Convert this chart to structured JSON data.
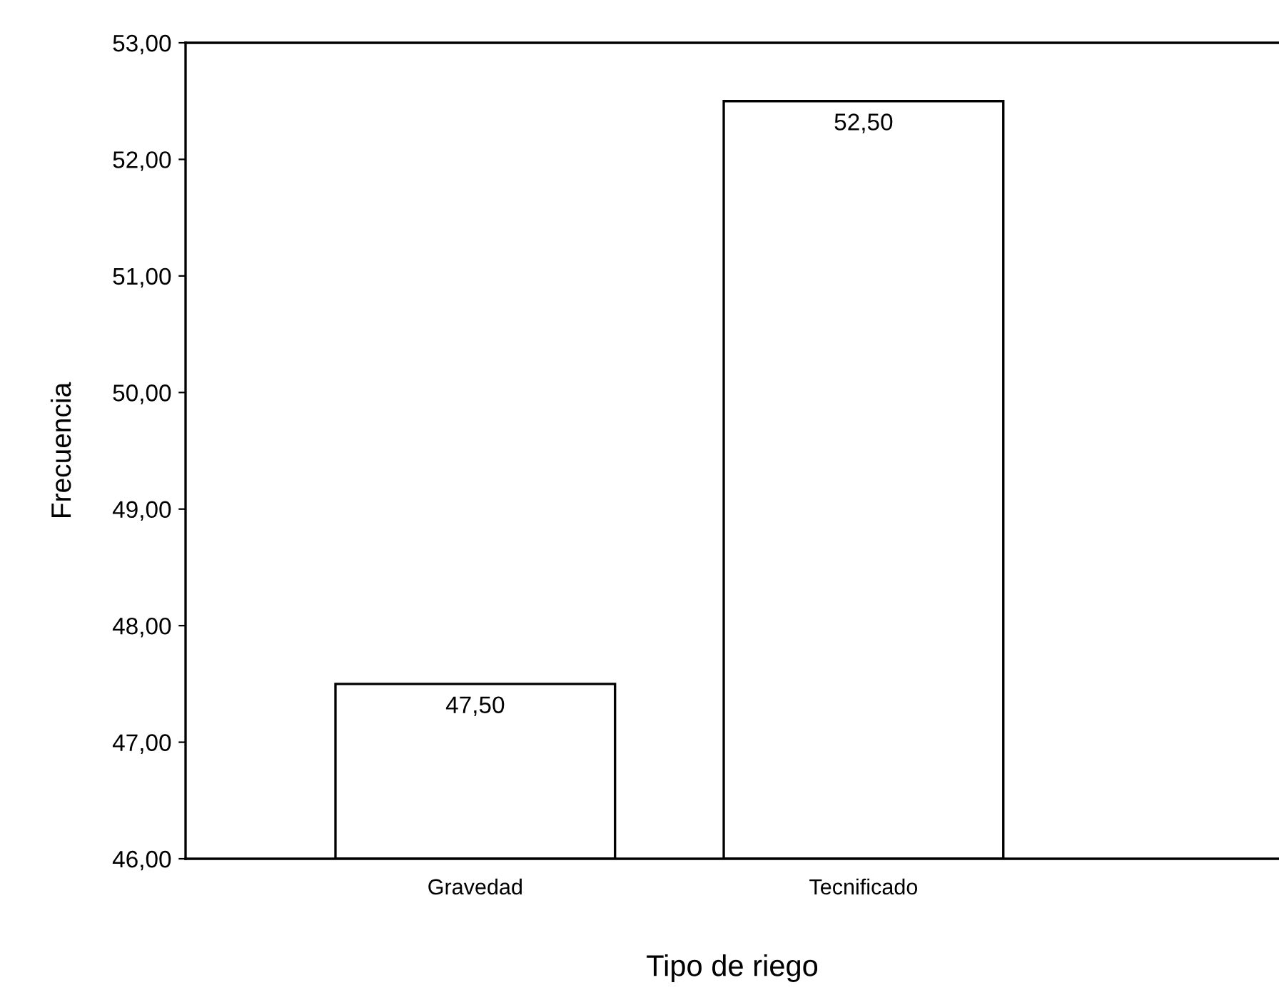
{
  "chart_data": {
    "type": "bar",
    "xlabel": "Tipo de riego",
    "ylabel": "Frecuencia",
    "categories": [
      "Gravedad",
      "Tecnificado"
    ],
    "values": [
      47.5,
      52.5
    ],
    "value_labels": [
      "47,50",
      "52,50"
    ],
    "color": "#ffffff",
    "ylim": [
      46,
      53
    ],
    "yticks": [
      {
        "value": 46,
        "label": "46,00"
      },
      {
        "value": 47,
        "label": "47,00"
      },
      {
        "value": 48,
        "label": "48,00"
      },
      {
        "value": 49,
        "label": "49,00"
      },
      {
        "value": 50,
        "label": "50,00"
      },
      {
        "value": 51,
        "label": "51,00"
      },
      {
        "value": 52,
        "label": "52,00"
      },
      {
        "value": 53,
        "label": "53,00"
      }
    ],
    "grid": false,
    "legend": false
  }
}
